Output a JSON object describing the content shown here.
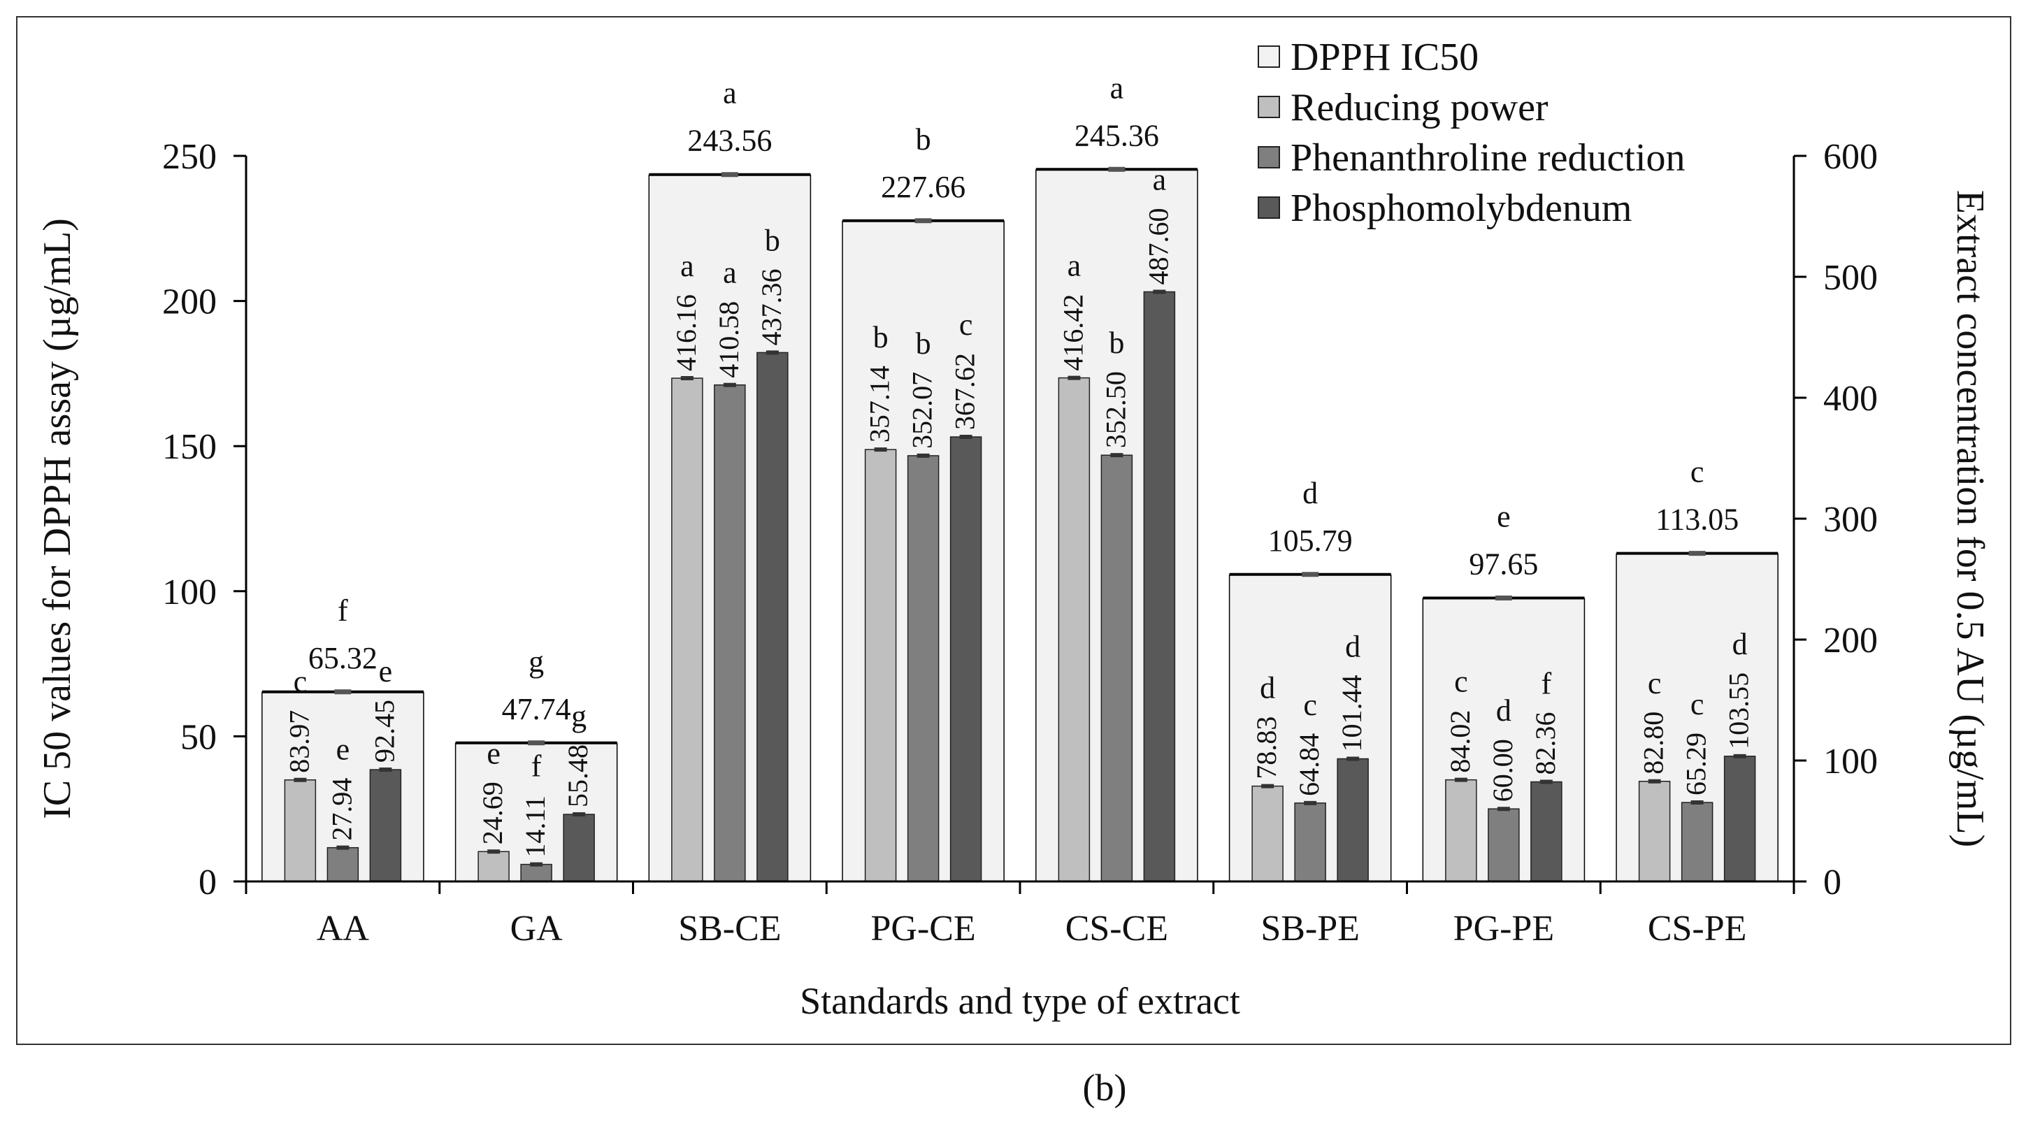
{
  "figure_label": "(b)",
  "chart_data": {
    "type": "bar",
    "xlabel": "Standards and type of extract",
    "ylabel_left": "IC 50 values for DPPH assay (µg/mL)",
    "ylabel_right": "Extract concentration for 0.5 AU (µg/mL)",
    "ylim_left": [
      0,
      250
    ],
    "ylim_right": [
      0,
      600
    ],
    "yticks_left": [
      "0",
      "50",
      "100",
      "150",
      "200",
      "250"
    ],
    "yticks_right": [
      "0",
      "100",
      "200",
      "300",
      "400",
      "500",
      "600"
    ],
    "categories": [
      "AA",
      "GA",
      "SB-CE",
      "PG-CE",
      "CS-CE",
      "SB-PE",
      "PG-PE",
      "CS-PE"
    ],
    "series": [
      {
        "name": "DPPH IC50",
        "axis": "left",
        "color": "#f2f2f2",
        "values": [
          65.32,
          47.74,
          243.56,
          227.66,
          245.36,
          105.79,
          97.65,
          113.05
        ],
        "labels": [
          "65.32",
          "47.74",
          "243.56",
          "227.66",
          "245.36",
          "105.79",
          "97.65",
          "113.05"
        ],
        "letters": [
          "f",
          "g",
          "a",
          "b",
          "a",
          "d",
          "e",
          "c"
        ]
      },
      {
        "name": "Reducing power",
        "axis": "right",
        "color": "#bfbfbf",
        "values": [
          83.97,
          24.69,
          416.16,
          357.14,
          416.42,
          78.83,
          84.02,
          82.8
        ],
        "labels": [
          "83.97",
          "24.69",
          "416.16",
          "357.14",
          "416.42",
          "78.83",
          "84.02",
          "82.80"
        ],
        "letters": [
          "c",
          "e",
          "a",
          "b",
          "a",
          "d",
          "c",
          "c"
        ]
      },
      {
        "name": "Phenanthroline reduction",
        "axis": "right",
        "color": "#7f7f7f",
        "values": [
          27.94,
          14.11,
          410.58,
          352.07,
          352.5,
          64.84,
          60.0,
          65.29
        ],
        "labels": [
          "27.94",
          "14.11",
          "410.58",
          "352.07",
          "352.50",
          "64.84",
          "60.00",
          "65.29"
        ],
        "letters": [
          "e",
          "f",
          "a",
          "b",
          "b",
          "c",
          "d",
          "c"
        ]
      },
      {
        "name": "Phosphomolybdenum",
        "axis": "right",
        "color": "#595959",
        "values": [
          92.45,
          55.48,
          437.36,
          367.62,
          487.6,
          101.44,
          82.36,
          103.55
        ],
        "labels": [
          "92.45",
          "55.48",
          "437.36",
          "367.62",
          "487.60",
          "101.44",
          "82.36",
          "103.55"
        ],
        "letters": [
          "e",
          "g",
          "b",
          "c",
          "a",
          "d",
          "f",
          "d"
        ]
      }
    ],
    "legend_position": "top-right"
  }
}
